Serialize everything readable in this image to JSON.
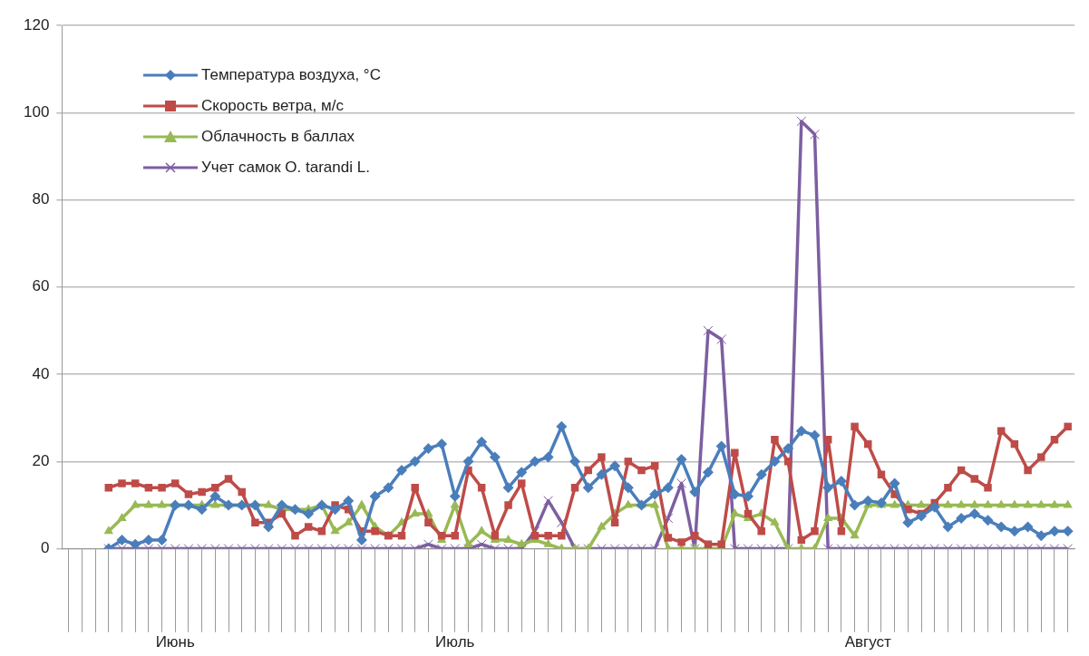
{
  "chart_data": {
    "type": "line",
    "categories": [
      null,
      null,
      null,
      null,
      null,
      null,
      null,
      null,
      "Июнь",
      null,
      null,
      null,
      null,
      null,
      null,
      null,
      null,
      null,
      null,
      null,
      null,
      null,
      null,
      null,
      null,
      null,
      null,
      null,
      null,
      "Июль",
      null,
      null,
      null,
      null,
      null,
      null,
      null,
      null,
      null,
      null,
      null,
      null,
      null,
      null,
      null,
      null,
      null,
      null,
      null,
      null,
      null,
      null,
      null,
      null,
      null,
      null,
      null,
      null,
      null,
      null,
      "Август",
      null,
      null,
      null,
      null,
      null,
      null,
      null,
      null,
      null,
      null,
      null,
      null,
      null,
      null,
      null
    ],
    "series": [
      {
        "name": "Температура воздуха, °C",
        "color": "#4a7ebb",
        "marker": "diamond",
        "values": [
          null,
          null,
          null,
          0,
          2,
          1,
          2,
          2,
          10,
          10,
          9,
          12,
          10,
          10,
          10,
          5,
          10,
          9,
          8,
          10,
          9,
          11,
          2,
          12,
          14,
          18,
          20,
          23,
          24,
          12,
          20,
          24.5,
          21,
          14,
          17.5,
          20,
          21,
          28,
          20,
          14,
          17,
          19,
          14,
          10,
          12.5,
          14,
          20.5,
          13,
          17.5,
          23.5,
          12.5,
          12,
          17,
          20,
          23,
          27,
          26,
          14,
          15.5,
          10,
          11,
          10.5,
          15,
          6,
          7.5,
          9.5,
          5,
          7,
          8,
          6.5,
          5,
          4,
          5,
          3,
          4,
          4
        ]
      },
      {
        "name": "Скорость ветра, м/с",
        "color": "#be4b48",
        "marker": "square",
        "values": [
          null,
          null,
          null,
          14,
          15,
          15,
          14,
          14,
          15,
          12.5,
          13,
          14,
          16,
          13,
          6,
          6,
          8,
          3,
          5,
          4,
          10,
          9,
          4,
          4,
          3,
          3,
          14,
          6,
          3,
          3,
          18,
          14,
          3,
          10,
          15,
          3,
          3,
          3,
          14,
          18,
          21,
          6,
          20,
          18,
          19,
          2.5,
          1.5,
          3,
          1,
          1,
          22,
          8,
          4,
          25,
          20,
          2,
          4,
          25,
          4,
          28,
          24,
          17,
          12.5,
          9,
          8,
          10.5,
          14,
          18,
          16,
          14,
          27,
          24,
          18,
          21,
          25,
          28
        ]
      },
      {
        "name": "Облачность в баллах",
        "color": "#98b954",
        "marker": "triangle",
        "values": [
          null,
          null,
          null,
          4,
          7,
          10,
          10,
          10,
          10,
          10,
          10,
          10,
          10,
          10,
          10,
          10,
          9,
          9,
          9,
          10,
          4,
          6,
          10,
          5,
          3,
          6,
          8,
          8,
          2,
          10,
          1,
          4,
          2,
          2,
          1,
          2,
          1,
          0,
          0,
          0,
          5,
          8,
          10,
          10,
          10,
          0,
          0,
          0,
          0,
          0,
          8,
          7,
          8,
          6,
          0,
          0,
          0,
          7,
          7,
          3,
          10,
          10,
          10,
          10,
          10,
          10,
          10,
          10,
          10,
          10,
          10,
          10,
          10,
          10,
          10,
          10
        ]
      },
      {
        "name": "Учет  самок O. tarandi L.",
        "color": "#7d5fa0",
        "marker": "cross",
        "values": [
          null,
          null,
          null,
          0,
          0,
          0,
          0,
          0,
          0,
          0,
          0,
          0,
          0,
          0,
          0,
          0,
          0,
          0,
          0,
          0,
          0,
          0,
          0,
          0,
          0,
          0,
          0,
          1,
          0,
          0,
          0,
          1,
          0,
          0,
          0,
          4,
          11,
          6,
          0,
          0,
          0,
          0,
          0,
          0,
          0,
          7,
          15,
          0,
          50,
          48,
          0,
          0,
          0,
          0,
          0,
          98,
          95,
          0,
          0,
          0,
          0,
          0,
          0,
          0,
          0,
          0,
          0,
          0,
          0,
          0,
          0,
          0,
          0,
          0,
          0,
          0
        ]
      }
    ],
    "ylim": [
      0,
      120
    ],
    "yticks": [
      0,
      20,
      40,
      60,
      80,
      100,
      120
    ],
    "grid": "y",
    "legend": "top left"
  }
}
